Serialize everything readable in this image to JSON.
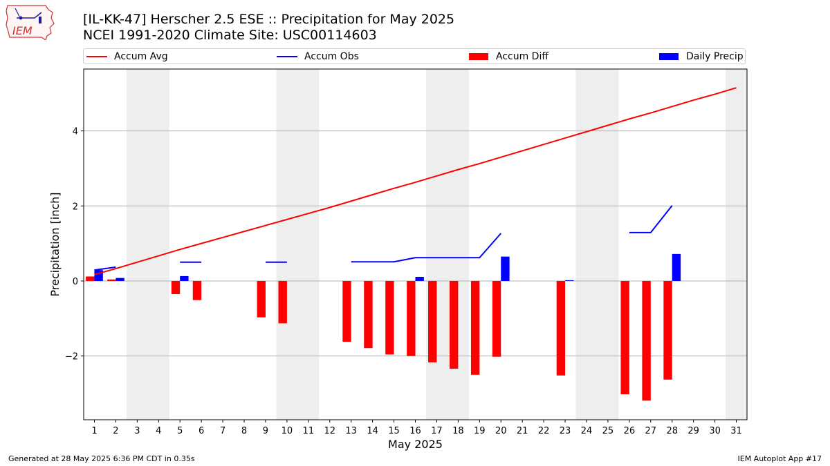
{
  "logo": {
    "text": "IEM"
  },
  "header": {
    "title_line1": "[IL-KK-47] Herscher 2.5 ESE :: Precipitation for May 2025",
    "title_line2": "NCEI 1991-2020 Climate Site: USC00114603"
  },
  "footer": {
    "generated": "Generated at 28 May 2025 6:36 PM CDT in 0.35s",
    "app": "IEM Autoplot App #17"
  },
  "colors": {
    "accum_avg": "#ff0000",
    "accum_obs": "#0000ff",
    "accum_diff": "#ff0000",
    "daily_precip": "#0000ff",
    "weekend_shade": "#eeeeee",
    "grid": "#b0b0b0"
  },
  "chart_data": {
    "type": "bar",
    "xlabel": "May 2025",
    "ylabel": "Precipitation [inch]",
    "xlim": [
      0.5,
      31.5
    ],
    "ylim": [
      -3.7,
      5.65
    ],
    "yticks": [
      -2,
      0,
      2,
      4
    ],
    "ytick_labels": [
      "−2",
      "0",
      "2",
      "4"
    ],
    "grid": "horizontal",
    "legend_position": "top",
    "days": [
      1,
      2,
      3,
      4,
      5,
      6,
      7,
      8,
      9,
      10,
      11,
      12,
      13,
      14,
      15,
      16,
      17,
      18,
      19,
      20,
      21,
      22,
      23,
      24,
      25,
      26,
      27,
      28,
      29,
      30,
      31
    ],
    "weekend_days": [
      3,
      4,
      10,
      11,
      17,
      18,
      24,
      25,
      31
    ],
    "series": [
      {
        "name": "Accum Avg",
        "kind": "line",
        "values": [
          0.17,
          0.33,
          0.5,
          0.67,
          0.84,
          1.0,
          1.16,
          1.32,
          1.48,
          1.64,
          1.8,
          1.96,
          2.13,
          2.3,
          2.47,
          2.63,
          2.8,
          2.97,
          3.13,
          3.3,
          3.47,
          3.64,
          3.81,
          3.98,
          4.15,
          4.32,
          4.48,
          4.65,
          4.82,
          4.98,
          5.15
        ]
      },
      {
        "name": "Accum Obs",
        "kind": "segments",
        "segments": [
          {
            "days": [
              1,
              2
            ],
            "values": [
              0.29,
              0.37
            ]
          },
          {
            "days": [
              5,
              6
            ],
            "values": [
              0.5,
              0.5
            ]
          },
          {
            "days": [
              9,
              10
            ],
            "values": [
              0.5,
              0.5
            ]
          },
          {
            "days": [
              13,
              14,
              15,
              16,
              17,
              18,
              19,
              20
            ],
            "values": [
              0.51,
              0.51,
              0.51,
              0.62,
              0.62,
              0.62,
              0.62,
              1.27
            ]
          },
          {
            "days": [
              26,
              27,
              28
            ],
            "values": [
              1.29,
              1.29,
              2.01
            ]
          }
        ]
      },
      {
        "name": "Accum Diff",
        "kind": "bar",
        "days": [
          1,
          2,
          5,
          6,
          9,
          10,
          13,
          14,
          15,
          16,
          17,
          18,
          19,
          20,
          23,
          26,
          27,
          28
        ],
        "values": [
          0.12,
          0.04,
          -0.35,
          -0.51,
          -0.97,
          -1.13,
          -1.62,
          -1.79,
          -1.96,
          -2.0,
          -2.17,
          -2.34,
          -2.5,
          -2.02,
          -2.52,
          -3.02,
          -3.19,
          -2.63
        ]
      },
      {
        "name": "Daily Precip",
        "kind": "bar",
        "days": [
          1,
          2,
          5,
          16,
          20,
          23,
          28
        ],
        "values": [
          0.29,
          0.08,
          0.13,
          0.11,
          0.65,
          0.02,
          0.72
        ]
      }
    ]
  }
}
